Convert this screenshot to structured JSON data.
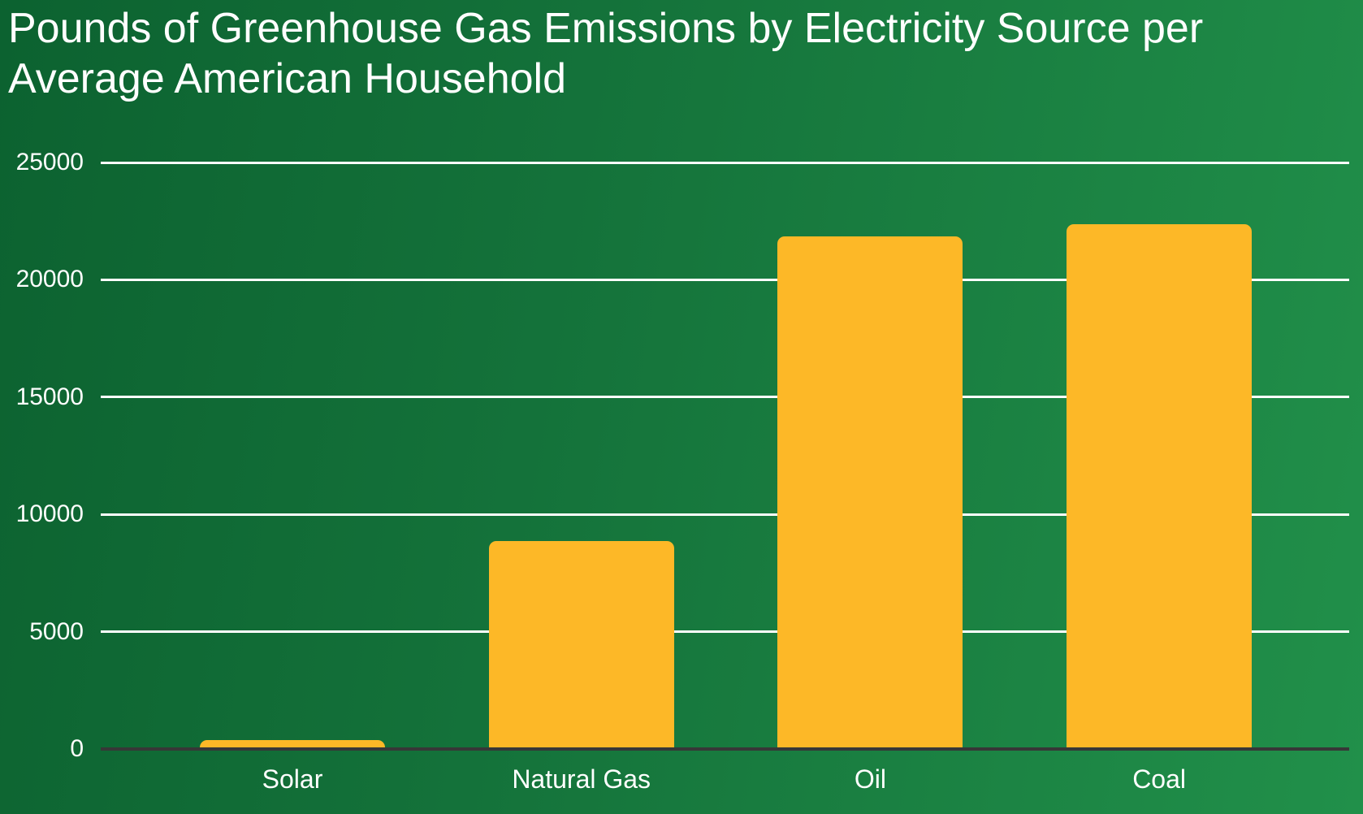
{
  "title_line1": "Pounds of Greenhouse Gas Emissions by Electricity Source per",
  "title_line2": "Average American Household",
  "chart_data": {
    "type": "bar",
    "title": "Pounds of Greenhouse Gas Emissions by Electricity Source per Average American Household",
    "categories": [
      "Solar",
      "Natural Gas",
      "Oil",
      "Coal"
    ],
    "values": [
      400,
      8900,
      21900,
      22400
    ],
    "xlabel": "",
    "ylabel": "",
    "ylim": [
      0,
      25000
    ],
    "yticks": [
      0,
      5000,
      10000,
      15000,
      20000,
      25000
    ],
    "grid": true,
    "legend": "none",
    "colors": {
      "bar": "#fdb827",
      "background_dark": "#0c6230",
      "background_light": "#21904a",
      "gridline": "#ffffff",
      "zero_axis": "#373737",
      "text": "#ffffff"
    }
  }
}
